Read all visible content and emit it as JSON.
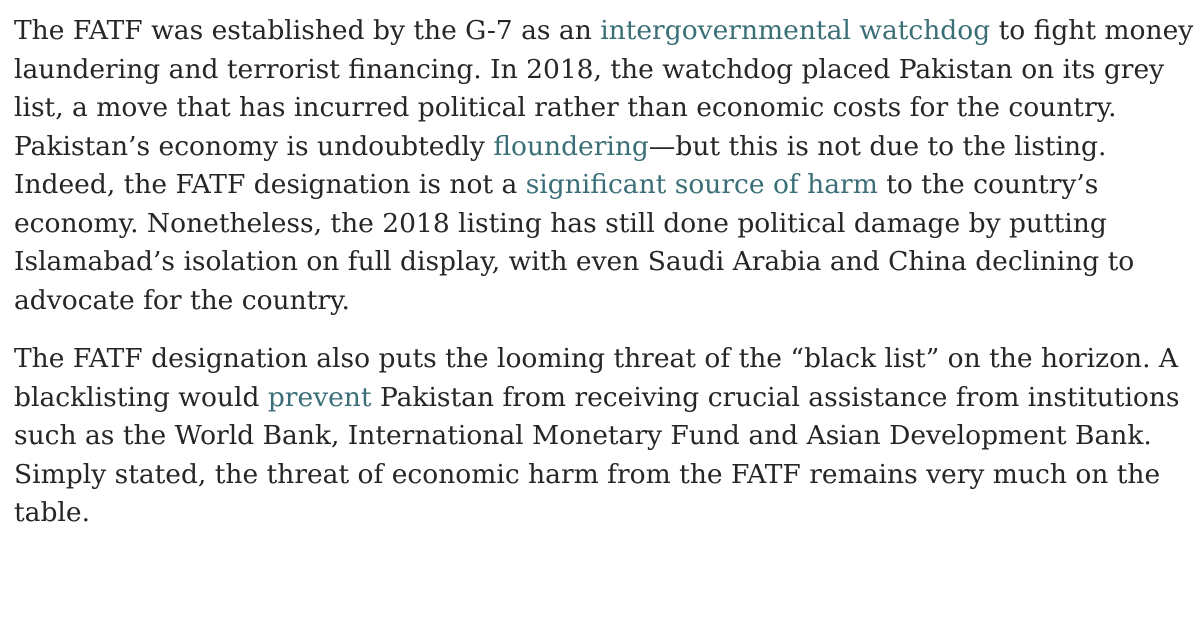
{
  "article": {
    "paragraphs": [
      {
        "segments": [
          {
            "text": "The FATF was established by the G-7 as an "
          },
          {
            "text": "intergovernmental watchdog",
            "link": true
          },
          {
            "text": " to fight money laundering and terrorist financing. In 2018, the watchdog placed Pakistan on its grey list, a move that has incurred political rather than economic costs for the country. Pakistan’s economy is undoubtedly "
          },
          {
            "text": "floundering",
            "link": true
          },
          {
            "text": "—but this is not due to the listing. Indeed, the FATF designation is not a "
          },
          {
            "text": "significant source of harm",
            "link": true
          },
          {
            "text": " to the country’s economy. Nonetheless, the 2018 listing has still done political damage by putting Islamabad’s isolation on full display, with even Saudi Arabia and China declining to advocate for the country."
          }
        ]
      },
      {
        "segments": [
          {
            "text": "The FATF designation also puts the looming threat of the “black list” on the horizon. A blacklisting would "
          },
          {
            "text": "prevent",
            "link": true
          },
          {
            "text": " Pakistan from receiving crucial assistance from institutions such as the World Bank, International Monetary Fund and Asian Development Bank. Simply stated, the threat of economic harm from the FATF remains very much on the table."
          }
        ]
      }
    ]
  }
}
